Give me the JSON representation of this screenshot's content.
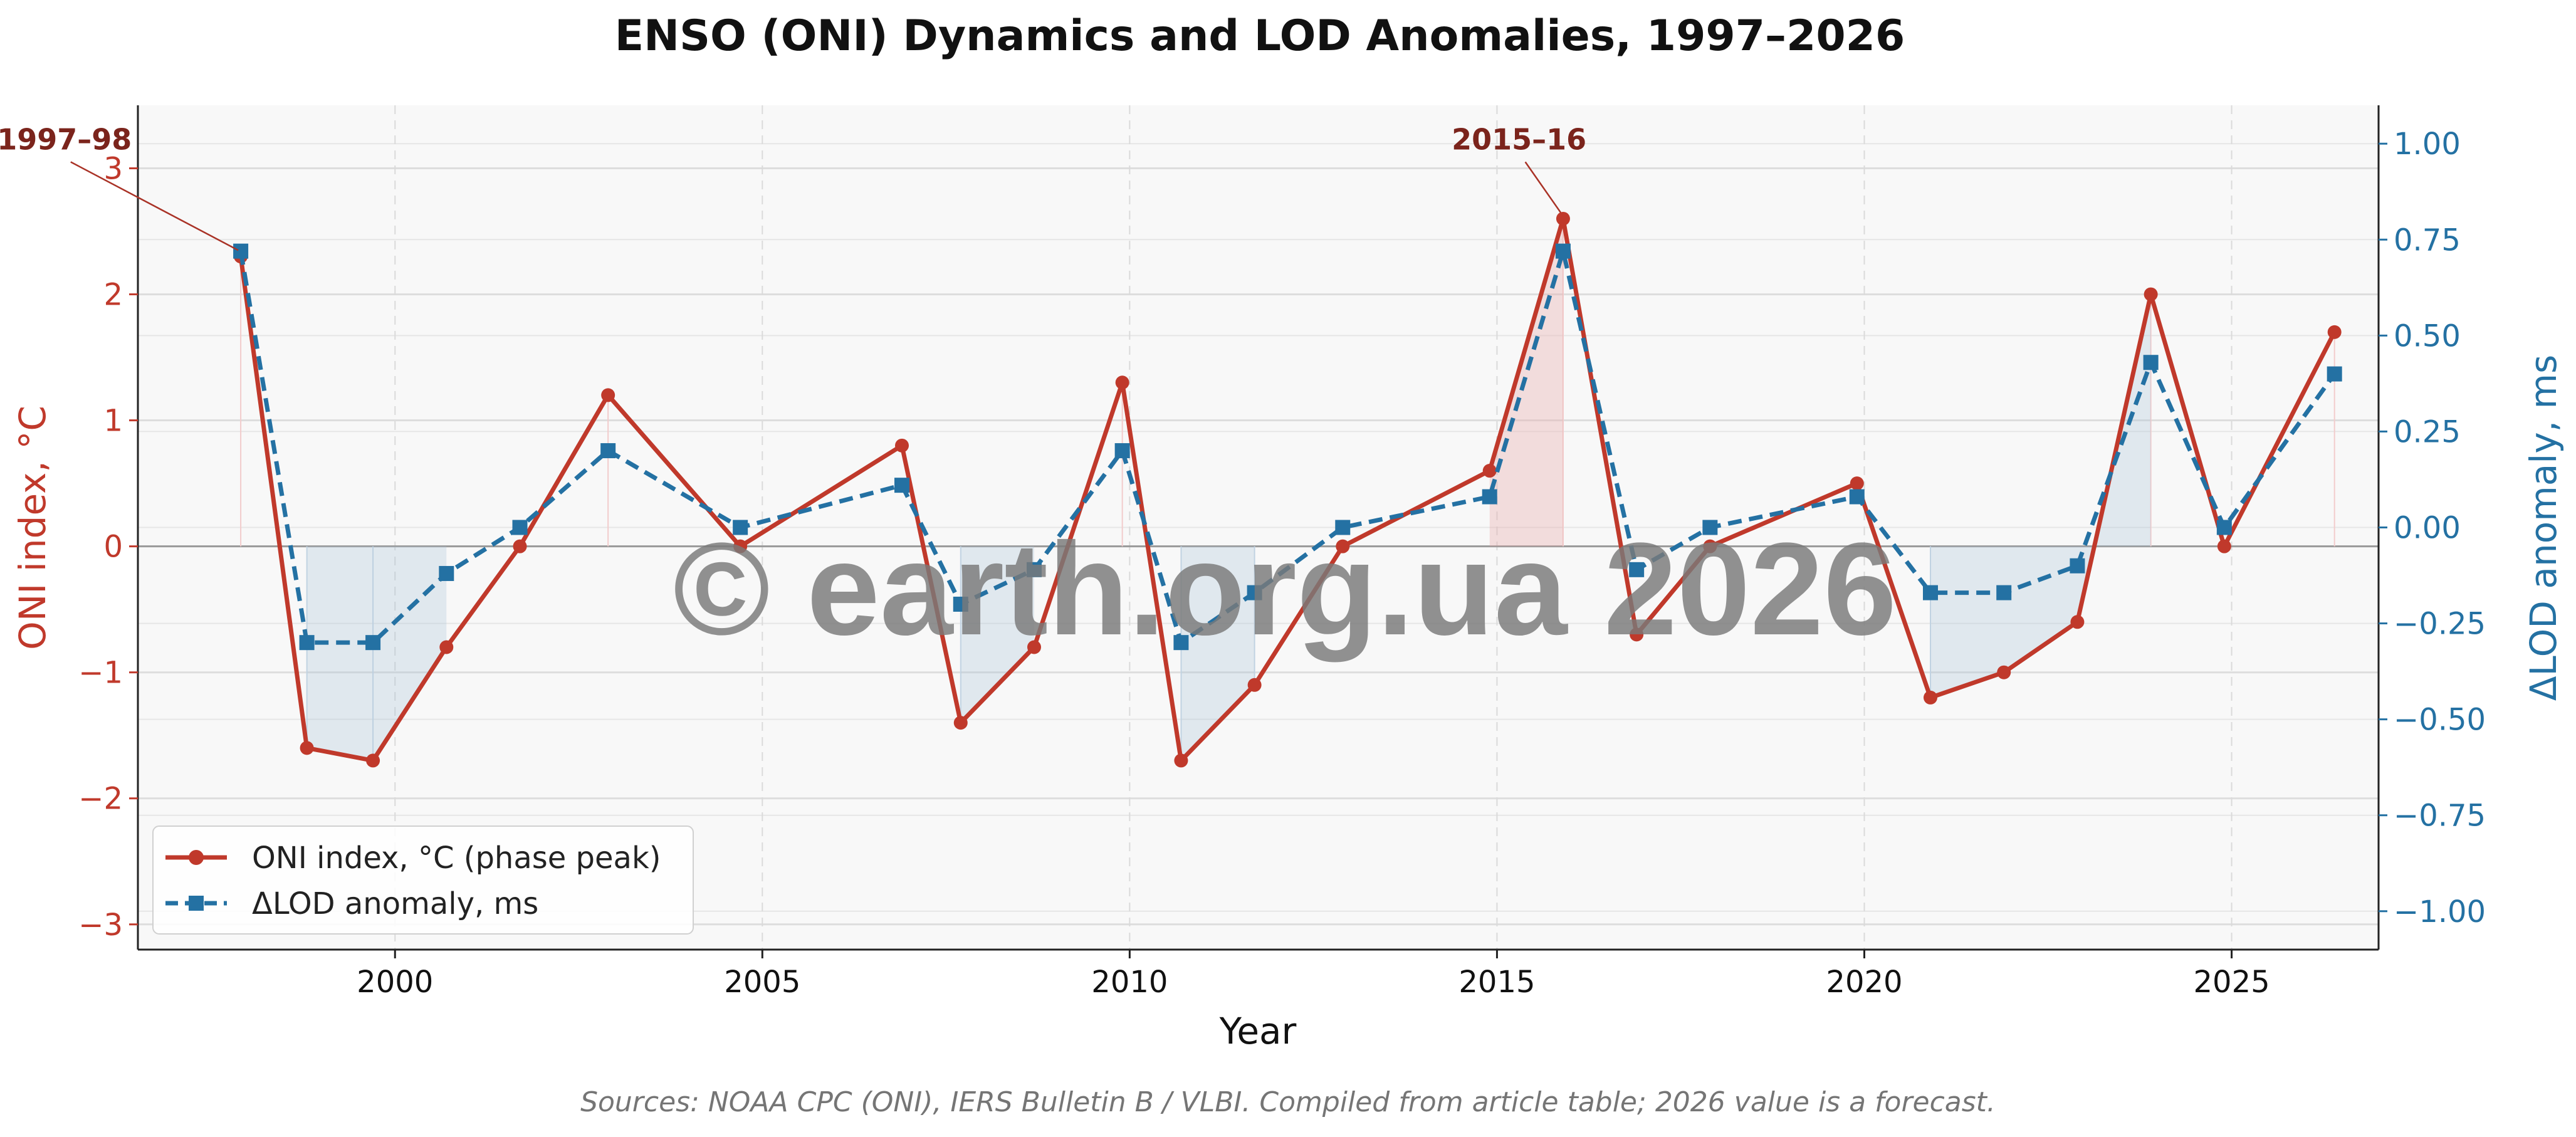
{
  "chart_data": {
    "type": "line",
    "title": "ENSO (ONI) Dynamics and LOD Anomalies, 1997–2026",
    "xlabel": "Year",
    "ylabel_left": "ONI index, °C",
    "ylabel_right": "ΔLOD anomaly, ms",
    "xlim": [
      1996.5,
      2027
    ],
    "ylim_left": [
      -3.2,
      3.5
    ],
    "ylim_right": [
      -1.1,
      1.1
    ],
    "x_ticks": [
      2000,
      2005,
      2010,
      2015,
      2020,
      2025
    ],
    "x_tick_labels": [
      "2000",
      "2005",
      "2010",
      "2015",
      "2020",
      "2025"
    ],
    "y_left_ticks": [
      -3,
      -2,
      -1,
      0,
      1,
      2,
      3
    ],
    "y_left_tick_labels": [
      "−3",
      "−2",
      "−1",
      "0",
      "1",
      "2",
      "3"
    ],
    "y_right_ticks": [
      -1.0,
      -0.75,
      -0.5,
      -0.25,
      0.0,
      0.25,
      0.5,
      0.75,
      1.0
    ],
    "y_right_tick_labels": [
      "−1.00",
      "−0.75",
      "−0.50",
      "−0.25",
      "0.00",
      "0.25",
      "0.50",
      "0.75",
      "1.00"
    ],
    "grid": true,
    "legend_position": "lower-left",
    "x": [
      1997.9,
      1998.8,
      1999.7,
      2000.7,
      2001.7,
      2002.9,
      2004.7,
      2006.9,
      2007.7,
      2008.7,
      2009.9,
      2010.7,
      2011.7,
      2012.9,
      2014.9,
      2015.9,
      2016.9,
      2017.9,
      2019.9,
      2020.9,
      2021.9,
      2022.9,
      2023.9,
      2024.9,
      2026.4
    ],
    "series": [
      {
        "name": "ONI index, °C (phase peak)",
        "axis": "left",
        "color": "#c0392b",
        "marker": "circle",
        "values": [
          2.3,
          -1.6,
          -1.7,
          -0.8,
          0.0,
          1.2,
          0.0,
          0.8,
          -1.4,
          -0.8,
          1.3,
          -1.7,
          -1.1,
          0.0,
          0.6,
          2.6,
          -0.7,
          0.0,
          0.5,
          -1.2,
          -1.0,
          -0.6,
          2.0,
          0.0,
          1.7
        ]
      },
      {
        "name": "ΔLOD anomaly, ms",
        "axis": "right",
        "color": "#2471a3",
        "marker": "square",
        "values": [
          0.72,
          -0.3,
          -0.3,
          -0.12,
          0.0,
          0.2,
          0.0,
          0.11,
          -0.2,
          -0.11,
          0.2,
          -0.3,
          -0.17,
          0.0,
          0.08,
          0.72,
          -0.11,
          0.0,
          0.08,
          -0.17,
          -0.17,
          -0.1,
          0.43,
          0.0,
          0.4
        ]
      }
    ],
    "annotations": [
      {
        "text": "1997–98",
        "x": 1997.9,
        "y": 2.3,
        "text_x": 1995.5,
        "text_y": 3.15
      },
      {
        "text": "2015–16",
        "x": 2015.9,
        "y": 2.6,
        "text_x": 2015.3,
        "text_y": 3.15
      }
    ],
    "source": "Sources: NOAA CPC (ONI), IERS Bulletin B / VLBI. Compiled from article table; 2026 value is a forecast.",
    "watermark": "© earth.org.ua 2026"
  }
}
